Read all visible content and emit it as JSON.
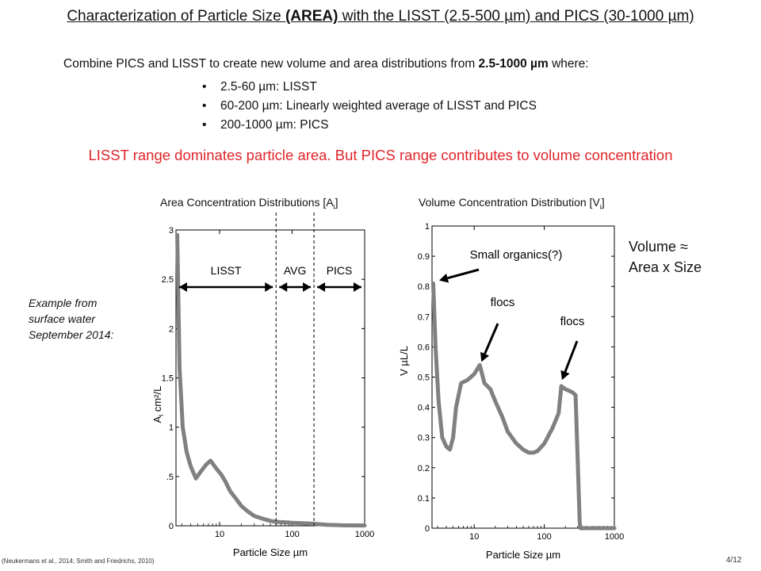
{
  "slide": {
    "title_prefix": "Characterization of Particle Size ",
    "title_bold": "(AREA)",
    "title_suffix": " with the LISST (2.5-500 µm) and PICS (30-1000 µm)",
    "intro_prefix": "Combine PICS and LISST to create new volume and area distributions  from ",
    "intro_bold": "2.5-1000 µm",
    "intro_suffix": " where:",
    "bullets": [
      "2.5-60 µm: LISST",
      "60-200 µm: Linearly weighted average of LISST and PICS",
      "200-1000 µm: PICS"
    ],
    "highlight": "LISST range dominates particle area. But PICS range contributes to volume concentration",
    "highlight_color": "#e0242a",
    "example_lines": [
      "Example from",
      "surface water",
      "September 2014:"
    ],
    "note_lines": [
      "Volume ≈",
      "Area x Size"
    ],
    "footer_citation": "(Neukermans et al., 2014; Smith and Friedrichs, 2010)",
    "page_number": "4/12"
  },
  "chart_data": [
    {
      "type": "line",
      "title_main": "Area Concentration Distributions [A",
      "title_sub": "i",
      "title_end": "]",
      "ylabel_main": "A",
      "ylabel_sub": "i",
      "ylabel_rest": " cm²/L",
      "xlabel": "Particle Size µm",
      "x_scale": "log",
      "xlim": [
        2.5,
        1000
      ],
      "ylim": [
        0,
        3
      ],
      "xticks": [
        10,
        100,
        1000
      ],
      "xtick_labels": [
        "10",
        "100",
        "1000"
      ],
      "yticks": [
        0,
        0.5,
        1,
        1.5,
        2,
        2.5,
        3
      ],
      "ytick_labels": [
        "0",
        ".5",
        "1",
        "1.5",
        "2",
        "2.5",
        "3"
      ],
      "line_color": "#808080",
      "x": [
        2.6,
        2.8,
        3.1,
        3.5,
        4.0,
        4.7,
        5.5,
        6.5,
        7.5,
        9.0,
        10.5,
        12,
        14,
        17,
        20,
        25,
        30,
        40,
        50,
        60,
        80,
        100,
        150,
        200,
        300,
        500,
        1000
      ],
      "y": [
        2.95,
        1.6,
        1.0,
        0.75,
        0.6,
        0.48,
        0.55,
        0.62,
        0.66,
        0.58,
        0.52,
        0.45,
        0.35,
        0.27,
        0.2,
        0.14,
        0.1,
        0.07,
        0.05,
        0.04,
        0.035,
        0.03,
        0.025,
        0.02,
        0.01,
        0.005,
        0.003
      ],
      "region_dividers_x": [
        60,
        200
      ],
      "regions": [
        {
          "label": "LISST",
          "from": 2.5,
          "to": 60
        },
        {
          "label": "AVG",
          "from": 60,
          "to": 200
        },
        {
          "label": "PICS",
          "from": 200,
          "to": 1000
        }
      ]
    },
    {
      "type": "line",
      "title_main": "Volume Concentration Distribution [V",
      "title_sub": "i",
      "title_end": "]",
      "ylabel": "V  µL/L",
      "xlabel": "Particle Size  µm",
      "x_scale": "log",
      "xlim": [
        2.5,
        1000
      ],
      "ylim": [
        0,
        1
      ],
      "xticks": [
        10,
        100,
        1000
      ],
      "xtick_labels": [
        "10",
        "100",
        "1000"
      ],
      "yticks": [
        0,
        0.1,
        0.2,
        0.3,
        0.4,
        0.5,
        0.6,
        0.7,
        0.8,
        0.9,
        1
      ],
      "ytick_labels": [
        "0",
        "0.1",
        "0.2",
        "0.3",
        "0.4",
        "0.5",
        "0.6",
        "0.7",
        "0.8",
        "0.9",
        "1"
      ],
      "line_color": "#808080",
      "x": [
        2.6,
        2.8,
        3.1,
        3.5,
        4.0,
        4.5,
        5.0,
        5.5,
        6.5,
        8,
        10,
        12,
        14,
        17,
        20,
        25,
        30,
        40,
        50,
        60,
        70,
        80,
        100,
        130,
        160,
        175,
        200,
        250,
        280,
        320,
        330,
        500,
        1000
      ],
      "y": [
        0.81,
        0.6,
        0.42,
        0.3,
        0.27,
        0.26,
        0.3,
        0.4,
        0.48,
        0.49,
        0.51,
        0.54,
        0.48,
        0.46,
        0.42,
        0.37,
        0.32,
        0.28,
        0.26,
        0.25,
        0.25,
        0.255,
        0.28,
        0.33,
        0.38,
        0.47,
        0.46,
        0.45,
        0.44,
        0.02,
        0,
        0,
        0
      ],
      "annotations": [
        {
          "text": "Small organics(?)",
          "x": 2.7,
          "y": 0.82
        },
        {
          "text": "flocs",
          "x": 12,
          "y": 0.54
        },
        {
          "text": "flocs",
          "x": 170,
          "y": 0.48
        }
      ]
    }
  ]
}
